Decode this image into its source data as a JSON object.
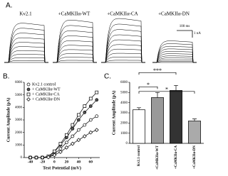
{
  "figure": {
    "panel_labels": [
      "A.",
      "B.",
      "C."
    ],
    "trace_labels": [
      "Kv2.1",
      "+CaMKIIα-WT",
      "+CaMKIIα-CA",
      "+CaMKIIα-DN"
    ],
    "scale_bar": {
      "time": "100 ms",
      "current": "1 nA"
    }
  },
  "chart_data": [
    {
      "type": "line",
      "xlabel": "Test Potential (mV)",
      "ylabel": "Current Amplitude (pA)",
      "x": [
        -40,
        -30,
        -20,
        -10,
        0,
        10,
        20,
        30,
        40,
        50,
        60,
        70
      ],
      "xlim": [
        -50,
        75
      ],
      "xticks": [
        -40,
        -20,
        0,
        20,
        40,
        60
      ],
      "ylim": [
        0,
        6000
      ],
      "yticks": [
        0,
        1000,
        2000,
        3000,
        4000,
        5000,
        6000
      ],
      "legend": "upper left",
      "series": [
        {
          "name": "Kv2.1 control",
          "color": "#000000",
          "fill": "#ffffff",
          "marker": "circle",
          "values": [
            0,
            0,
            0,
            50,
            300,
            700,
            1200,
            1700,
            2200,
            2600,
            3000,
            3300
          ]
        },
        {
          "name": "+ CaMKIIα-WT",
          "color": "#000000",
          "fill": "#555555",
          "marker": "circle",
          "values": [
            0,
            0,
            0,
            80,
            450,
            1000,
            1600,
            2300,
            3000,
            3600,
            4100,
            4600
          ]
        },
        {
          "name": "+ CaMKIIα-CA",
          "color": "#000000",
          "fill": "#ffffff",
          "marker": "square",
          "values": [
            0,
            0,
            0,
            100,
            500,
            1100,
            1800,
            2600,
            3400,
            4100,
            4700,
            5200
          ]
        },
        {
          "name": "+ CaMKIIα-DN",
          "color": "#000000",
          "fill": "#ffffff",
          "marker": "diamond",
          "values": [
            0,
            0,
            0,
            30,
            200,
            450,
            800,
            1100,
            1400,
            1700,
            2000,
            2200
          ]
        }
      ]
    },
    {
      "type": "bar",
      "ylabel": "Current Amplitude (pA)",
      "categories": [
        "Kv2.1 control",
        "+CaMKIIα-WT",
        "+CaMKIIα-CA",
        "+CaMKIIα-DN"
      ],
      "values": [
        3300,
        4500,
        5200,
        2200
      ],
      "errors": [
        200,
        500,
        500,
        200
      ],
      "colors": [
        "#ffffff",
        "#999999",
        "#333333",
        "#aaaaaa"
      ],
      "ylim": [
        0,
        6000
      ],
      "yticks": [
        0,
        1000,
        2000,
        3000,
        4000,
        5000,
        6000
      ],
      "annotations": [
        "*",
        "***",
        "*"
      ]
    }
  ]
}
